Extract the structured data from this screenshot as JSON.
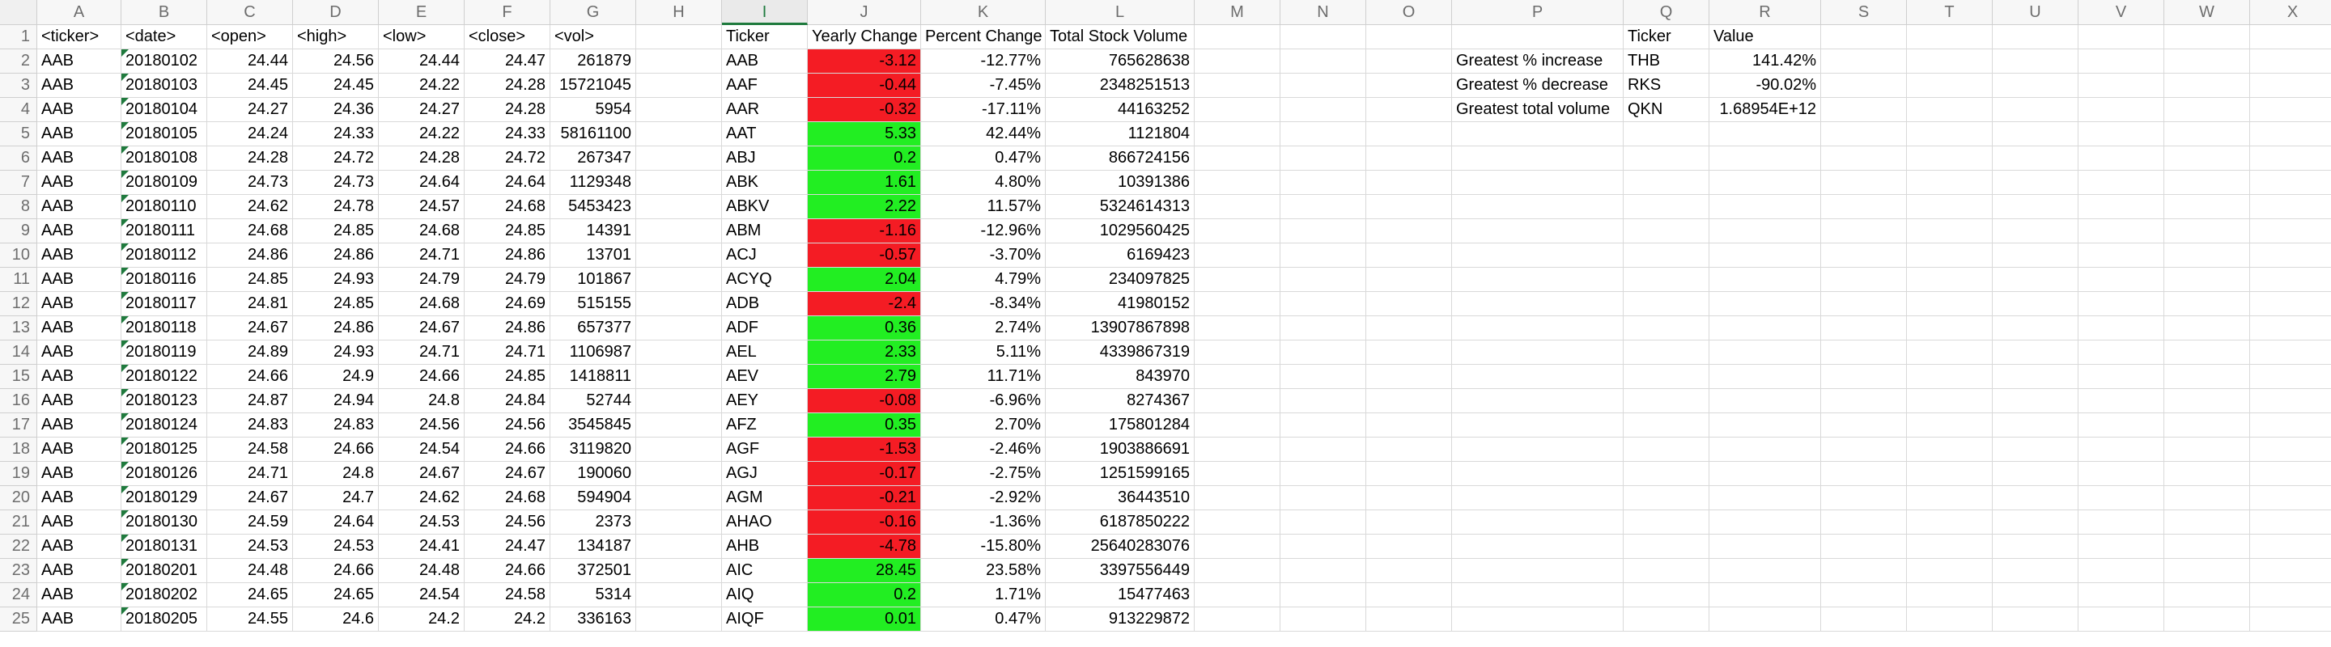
{
  "columns": [
    "A",
    "B",
    "C",
    "D",
    "E",
    "F",
    "G",
    "H",
    "I",
    "J",
    "K",
    "L",
    "M",
    "N",
    "O",
    "P",
    "Q",
    "R",
    "S",
    "T",
    "U",
    "V",
    "W",
    "X"
  ],
  "selected_column": "I",
  "header_row": [
    "<ticker>",
    "<date>",
    "<open>",
    "<high>",
    "<low>",
    "<close>",
    "<vol>"
  ],
  "stock_rows": [
    [
      "AAB",
      "20180102",
      "24.44",
      "24.56",
      "24.44",
      "24.47",
      "261879"
    ],
    [
      "AAB",
      "20180103",
      "24.45",
      "24.45",
      "24.22",
      "24.28",
      "15721045"
    ],
    [
      "AAB",
      "20180104",
      "24.27",
      "24.36",
      "24.27",
      "24.28",
      "5954"
    ],
    [
      "AAB",
      "20180105",
      "24.24",
      "24.33",
      "24.22",
      "24.33",
      "58161100"
    ],
    [
      "AAB",
      "20180108",
      "24.28",
      "24.72",
      "24.28",
      "24.72",
      "267347"
    ],
    [
      "AAB",
      "20180109",
      "24.73",
      "24.73",
      "24.64",
      "24.64",
      "1129348"
    ],
    [
      "AAB",
      "20180110",
      "24.62",
      "24.78",
      "24.57",
      "24.68",
      "5453423"
    ],
    [
      "AAB",
      "20180111",
      "24.68",
      "24.85",
      "24.68",
      "24.85",
      "14391"
    ],
    [
      "AAB",
      "20180112",
      "24.86",
      "24.86",
      "24.71",
      "24.86",
      "13701"
    ],
    [
      "AAB",
      "20180116",
      "24.85",
      "24.93",
      "24.79",
      "24.79",
      "101867"
    ],
    [
      "AAB",
      "20180117",
      "24.81",
      "24.85",
      "24.68",
      "24.69",
      "515155"
    ],
    [
      "AAB",
      "20180118",
      "24.67",
      "24.86",
      "24.67",
      "24.86",
      "657377"
    ],
    [
      "AAB",
      "20180119",
      "24.89",
      "24.93",
      "24.71",
      "24.71",
      "1106987"
    ],
    [
      "AAB",
      "20180122",
      "24.66",
      "24.9",
      "24.66",
      "24.85",
      "1418811"
    ],
    [
      "AAB",
      "20180123",
      "24.87",
      "24.94",
      "24.8",
      "24.84",
      "52744"
    ],
    [
      "AAB",
      "20180124",
      "24.83",
      "24.83",
      "24.56",
      "24.56",
      "3545845"
    ],
    [
      "AAB",
      "20180125",
      "24.58",
      "24.66",
      "24.54",
      "24.66",
      "3119820"
    ],
    [
      "AAB",
      "20180126",
      "24.71",
      "24.8",
      "24.67",
      "24.67",
      "190060"
    ],
    [
      "AAB",
      "20180129",
      "24.67",
      "24.7",
      "24.62",
      "24.68",
      "594904"
    ],
    [
      "AAB",
      "20180130",
      "24.59",
      "24.64",
      "24.53",
      "24.56",
      "2373"
    ],
    [
      "AAB",
      "20180131",
      "24.53",
      "24.53",
      "24.41",
      "24.47",
      "134187"
    ],
    [
      "AAB",
      "20180201",
      "24.48",
      "24.66",
      "24.48",
      "24.66",
      "372501"
    ],
    [
      "AAB",
      "20180202",
      "24.65",
      "24.65",
      "24.54",
      "24.58",
      "5314"
    ],
    [
      "AAB",
      "20180205",
      "24.55",
      "24.6",
      "24.2",
      "24.2",
      "336163"
    ]
  ],
  "summary_header": [
    "Ticker",
    "Yearly Change",
    "Percent Change",
    "Total Stock Volume"
  ],
  "summary_rows": [
    [
      "AAB",
      "-3.12",
      "-12.77%",
      "765628638"
    ],
    [
      "AAF",
      "-0.44",
      "-7.45%",
      "2348251513"
    ],
    [
      "AAR",
      "-0.32",
      "-17.11%",
      "44163252"
    ],
    [
      "AAT",
      "5.33",
      "42.44%",
      "1121804"
    ],
    [
      "ABJ",
      "0.2",
      "0.47%",
      "866724156"
    ],
    [
      "ABK",
      "1.61",
      "4.80%",
      "10391386"
    ],
    [
      "ABKV",
      "2.22",
      "11.57%",
      "5324614313"
    ],
    [
      "ABM",
      "-1.16",
      "-12.96%",
      "1029560425"
    ],
    [
      "ACJ",
      "-0.57",
      "-3.70%",
      "6169423"
    ],
    [
      "ACYQ",
      "2.04",
      "4.79%",
      "234097825"
    ],
    [
      "ADB",
      "-2.4",
      "-8.34%",
      "41980152"
    ],
    [
      "ADF",
      "0.36",
      "2.74%",
      "13907867898"
    ],
    [
      "AEL",
      "2.33",
      "5.11%",
      "4339867319"
    ],
    [
      "AEV",
      "2.79",
      "11.71%",
      "843970"
    ],
    [
      "AEY",
      "-0.08",
      "-6.96%",
      "8274367"
    ],
    [
      "AFZ",
      "0.35",
      "2.70%",
      "175801284"
    ],
    [
      "AGF",
      "-1.53",
      "-2.46%",
      "1903886691"
    ],
    [
      "AGJ",
      "-0.17",
      "-2.75%",
      "1251599165"
    ],
    [
      "AGM",
      "-0.21",
      "-2.92%",
      "36443510"
    ],
    [
      "AHAO",
      "-0.16",
      "-1.36%",
      "6187850222"
    ],
    [
      "AHB",
      "-4.78",
      "-15.80%",
      "25640283076"
    ],
    [
      "AIC",
      "28.45",
      "23.58%",
      "3397556449"
    ],
    [
      "AIQ",
      "0.2",
      "1.71%",
      "15477463"
    ],
    [
      "AIQF",
      "0.01",
      "0.47%",
      "913229872"
    ]
  ],
  "greatest": {
    "header": [
      "Ticker",
      "Value"
    ],
    "rows": [
      [
        "Greatest % increase",
        "THB",
        "141.42%"
      ],
      [
        "Greatest % decrease",
        "RKS",
        "-90.02%"
      ],
      [
        "Greatest total volume",
        "QKN",
        "1.68954E+12"
      ]
    ]
  },
  "colors": {
    "positive": "#22ee22",
    "negative": "#f41c24",
    "accent": "#1f7a3d"
  }
}
